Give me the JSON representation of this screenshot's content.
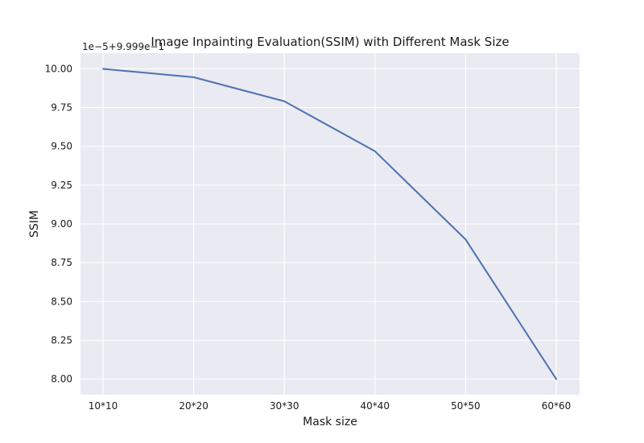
{
  "chart_data": {
    "type": "line",
    "title": "Image Inpainting Evaluation(SSIM) with Different Mask Size",
    "xlabel": "Mask size",
    "ylabel": "SSIM",
    "offset_text": "1e−5+9.999e−1",
    "categories": [
      "10*10",
      "20*20",
      "30*30",
      "40*40",
      "50*50",
      "60*60"
    ],
    "series": [
      {
        "values": [
          9.999,
          9.945,
          9.79,
          9.468,
          8.9,
          8.0
        ],
        "color": "#4c72b0"
      }
    ],
    "yticks": [
      8.0,
      8.25,
      8.5,
      8.75,
      9.0,
      9.25,
      9.5,
      9.75,
      10.0
    ],
    "ytick_labels": [
      "8.00",
      "8.25",
      "8.50",
      "8.75",
      "9.00",
      "9.25",
      "9.50",
      "9.75",
      "10.00"
    ],
    "ylim": [
      7.9,
      10.1
    ],
    "grid": true,
    "background": "#eaeaf2",
    "grid_color": "#ffffff"
  }
}
